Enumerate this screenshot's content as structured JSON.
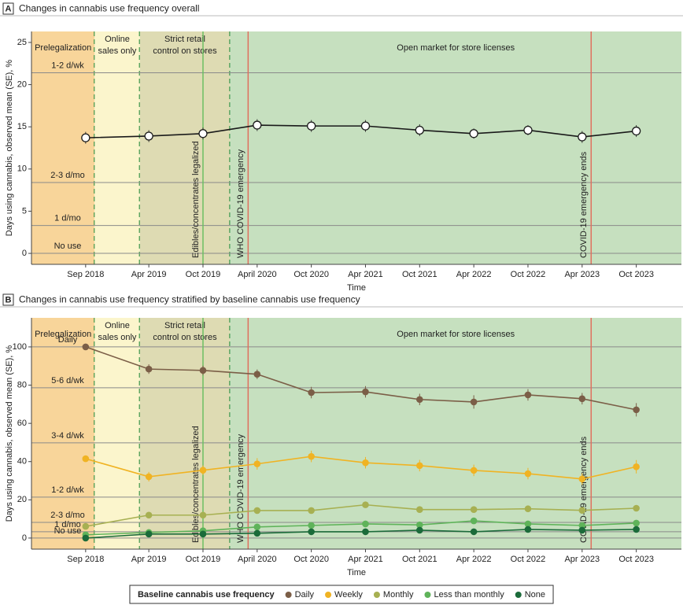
{
  "chart_data": [
    {
      "type": "line",
      "panel_label": "A",
      "title": "Changes in cannabis use frequency overall",
      "x_label": "Time",
      "y_label": "Days using cannabis, observed mean (SE), %",
      "x": [
        "Sep 2018",
        "Apr 2019",
        "Oct 2019",
        "April 2020",
        "Oct 2020",
        "Apr 2021",
        "Oct 2021",
        "Apr 2022",
        "Oct 2022",
        "Apr 2023",
        "Oct 2023"
      ],
      "xlim": [
        "2018-03",
        "2024-03"
      ],
      "values": [
        13.7,
        13.9,
        14.2,
        15.2,
        15.1,
        15.1,
        14.6,
        14.2,
        14.6,
        13.8,
        14.5
      ],
      "errors": [
        0.7,
        0.7,
        0.7,
        0.7,
        0.7,
        0.7,
        0.7,
        0.6,
        0.6,
        0.7,
        0.7
      ],
      "color": "#1a1a1a",
      "ylim": [
        -1.3,
        26.3
      ],
      "yticks": [
        0,
        5,
        10,
        15,
        20,
        25
      ],
      "reference_lines": [
        {
          "label": "1-2 d/wk",
          "value": 21.4
        },
        {
          "label": "2-3 d/mo",
          "value": 8.4
        },
        {
          "label": "1 d/mo",
          "value": 3.3
        },
        {
          "label": "No use",
          "value": 0
        }
      ],
      "phases": [
        {
          "label": [
            "Prelegalization"
          ],
          "end": "2018-10",
          "color": "#f8d59a"
        },
        {
          "label": [
            "Online",
            "sales only"
          ],
          "end": "2019-03",
          "color": "#fbf5cc"
        },
        {
          "label": [
            "Strict retail",
            "control on stores"
          ],
          "end": "2020-01",
          "color": "#dedbb3"
        },
        {
          "label": [
            "Open market for store licenses"
          ],
          "end": "2024-03",
          "color": "#c6e0bf"
        }
      ],
      "events": [
        {
          "label": "Edibles/concentrates legalized",
          "x": "2019-10",
          "color": "#6cbf62"
        },
        {
          "label": "WHO COVID-19 emergency",
          "x": "2020-03",
          "color": "#e0705f"
        },
        {
          "label": "COVID-19 emergency ends",
          "x": "2023-05",
          "color": "#e0705f"
        }
      ]
    },
    {
      "type": "line",
      "panel_label": "B",
      "title": "Changes in cannabis use frequency stratified by baseline cannabis use frequency",
      "x_label": "Time",
      "y_label": "Days using cannabis, observed mean (SE), %",
      "x": [
        "Sep 2018",
        "Apr 2019",
        "Oct 2019",
        "April 2020",
        "Oct 2020",
        "Apr 2021",
        "Oct 2021",
        "Apr 2022",
        "Oct 2022",
        "Apr 2023",
        "Oct 2023"
      ],
      "xlim": [
        "2018-03",
        "2024-03"
      ],
      "series": [
        {
          "name": "Daily",
          "color": "#7b5e47",
          "values": [
            100,
            88.4,
            87.7,
            85.7,
            76.1,
            76.5,
            72.5,
            71.2,
            74.9,
            72.9,
            67.1
          ],
          "errors": [
            0,
            2.5,
            2.5,
            2.5,
            3,
            3,
            3,
            3.5,
            3,
            3,
            3.5
          ]
        },
        {
          "name": "Weekly",
          "color": "#f0b323",
          "values": [
            41.5,
            32.1,
            35.5,
            38.8,
            42.7,
            39.4,
            37.9,
            35.4,
            33.7,
            30.9,
            37.3
          ],
          "errors": [
            0,
            2.5,
            2.5,
            3,
            3,
            3,
            3,
            3,
            3,
            3,
            3.5
          ]
        },
        {
          "name": "Monthly",
          "color": "#a7b052",
          "values": [
            6.1,
            12,
            12,
            14.4,
            14.4,
            17.4,
            14.9,
            14.9,
            15.3,
            14.5,
            15.6
          ],
          "errors": [
            0,
            1.5,
            1.5,
            1.5,
            1.5,
            1.5,
            1.5,
            1.5,
            1.5,
            1.5,
            1.5
          ]
        },
        {
          "name": "Less than monthly",
          "color": "#5fb35a",
          "values": [
            1.7,
            2.9,
            3.8,
            5.8,
            6.6,
            7.4,
            6.9,
            9,
            7.4,
            6.6,
            7.8
          ],
          "errors": [
            0,
            1,
            1,
            1,
            1,
            1,
            1,
            1,
            1,
            1,
            1
          ]
        },
        {
          "name": "None",
          "color": "#1b6b3a",
          "values": [
            0,
            2.1,
            2.1,
            2.5,
            3.3,
            3.3,
            4.1,
            3.3,
            4.5,
            4.1,
            4.5
          ],
          "errors": [
            0,
            0.8,
            0.8,
            0.8,
            0.8,
            0.8,
            0.8,
            0.8,
            0.8,
            0.8,
            0.8
          ]
        }
      ],
      "legend_title": "Baseline cannabis use frequency",
      "ylim": [
        -5.8,
        115.2
      ],
      "yticks": [
        0,
        20,
        40,
        60,
        80,
        100
      ],
      "reference_lines": [
        {
          "label": "Daily",
          "value": 100
        },
        {
          "label": "5-6 d/wk",
          "value": 78.6
        },
        {
          "label": "3-4 d/wk",
          "value": 49.8
        },
        {
          "label": "1-2 d/wk",
          "value": 21.4
        },
        {
          "label": "2-3 d/mo",
          "value": 8.2
        },
        {
          "label": "1 d/mo",
          "value": 3.3
        },
        {
          "label": "No use",
          "value": 0
        }
      ],
      "phases": [
        {
          "label": [
            "Prelegalization"
          ],
          "end": "2018-10",
          "color": "#f8d59a"
        },
        {
          "label": [
            "Online",
            "sales only"
          ],
          "end": "2019-03",
          "color": "#fbf5cc"
        },
        {
          "label": [
            "Strict retail",
            "control on stores"
          ],
          "end": "2020-01",
          "color": "#dedbb3"
        },
        {
          "label": [
            "Open market for store licenses"
          ],
          "end": "2024-03",
          "color": "#c6e0bf"
        }
      ],
      "events": [
        {
          "label": "Edibles/concentrates legalized",
          "x": "2019-10",
          "color": "#6cbf62"
        },
        {
          "label": "WHO COVID-19 emergency",
          "x": "2020-03",
          "color": "#e0705f"
        },
        {
          "label": "COVID-19 emergency ends",
          "x": "2023-05",
          "color": "#e0705f"
        }
      ]
    }
  ]
}
